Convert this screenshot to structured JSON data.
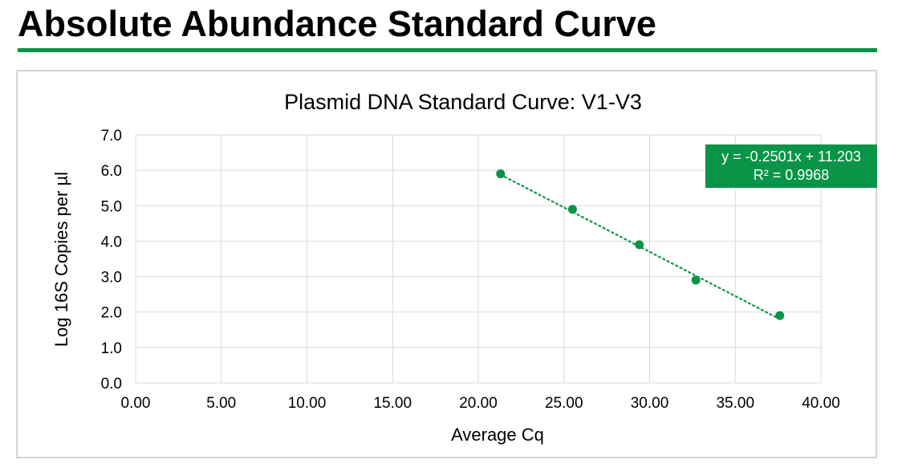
{
  "page": {
    "heading": "Absolute Abundance Standard Curve"
  },
  "colors": {
    "accent": "#0a9447",
    "grid": "#d9d9d9",
    "frame": "#d4d4d4"
  },
  "chart_data": {
    "type": "scatter",
    "title": "Plasmid DNA Standard Curve: V1-V3",
    "xlabel": "Average Cq",
    "ylabel": "Log 16S Copies per µl",
    "xlim": [
      0,
      40
    ],
    "ylim": [
      0,
      7
    ],
    "xticks": [
      "0.00",
      "5.00",
      "10.00",
      "15.00",
      "20.00",
      "25.00",
      "30.00",
      "35.00",
      "40.00"
    ],
    "yticks": [
      "0.0",
      "1.0",
      "2.0",
      "3.0",
      "4.0",
      "5.0",
      "6.0",
      "7.0"
    ],
    "grid": true,
    "series": [
      {
        "marker_color": "#0a9447",
        "points": [
          {
            "x": 21.3,
            "y": 5.9
          },
          {
            "x": 25.5,
            "y": 4.9
          },
          {
            "x": 29.4,
            "y": 3.9
          },
          {
            "x": 32.7,
            "y": 2.9
          },
          {
            "x": 37.6,
            "y": 1.9
          }
        ]
      }
    ],
    "trendline": {
      "type": "linear",
      "style": "dotted",
      "slope": -0.2501,
      "intercept": 11.203,
      "equation": "y = -0.2501x + 11.203",
      "r_squared": "R² = 0.9968"
    }
  }
}
